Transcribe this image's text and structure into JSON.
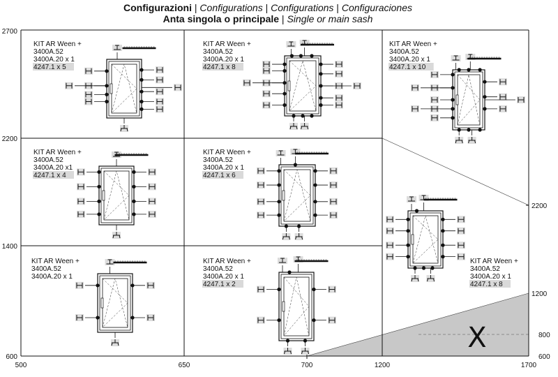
{
  "title": {
    "line1_it": "Configurazioni",
    "line1_rest": [
      " | ",
      "Configurations",
      " | ",
      "Configurations",
      " | ",
      "Configuraciones"
    ],
    "line2_it": "Anta singola o principale",
    "line2_sep": " | ",
    "line2_en": "Single or main sash"
  },
  "axes": {
    "x_ticks": [
      "500",
      "650",
      "700",
      "1200",
      "1700"
    ],
    "y_left_ticks": [
      "2700",
      "2200",
      "1400",
      "600"
    ],
    "y_right_ticks": [
      "2200",
      "1200",
      "800",
      "600"
    ]
  },
  "excluded_zone": {
    "label": "X",
    "fill": "#c8c8c8"
  },
  "colors": {
    "line": "#111111",
    "label_bg": "#d9d9d9",
    "excluded": "#c8c8c8"
  },
  "cells": [
    {
      "id": "r1c1",
      "lines": [
        "KIT AR Ween +",
        "3400A.52",
        "3400A.20 x 1"
      ],
      "qty": "4247.1 x 5"
    },
    {
      "id": "r1c2",
      "lines": [
        "KIT AR Ween +",
        "3400A.52",
        "3400A.20 x 1"
      ],
      "qty": "4247.1 x 8"
    },
    {
      "id": "r1c3",
      "lines": [
        "KIT AR Ween +",
        "3400A.52",
        "3400A.20 x 1"
      ],
      "qty": "4247.1 x 10"
    },
    {
      "id": "r2c1",
      "lines": [
        "KIT AR Ween +",
        "3400A.52",
        "3400A.20 x1"
      ],
      "qty": "4247.1 x 4"
    },
    {
      "id": "r2c2",
      "lines": [
        "KIT AR Ween +",
        "3400A.52",
        "3400A.20 x 1"
      ],
      "qty": "4247.1 x 6"
    },
    {
      "id": "r2c3",
      "lines": [
        "KIT AR Ween +",
        "3400A.52",
        "3400A.20 x 1"
      ],
      "qty": "4247.1 x 8"
    },
    {
      "id": "r3c1",
      "lines": [
        "KIT AR Ween +",
        "3400A.52",
        "3400A.20 x 1"
      ],
      "qty": ""
    },
    {
      "id": "r3c2",
      "lines": [
        "KIT AR Ween +",
        "3400A.52",
        "3400A.20 x 1"
      ],
      "qty": "4247.1 x 2"
    }
  ]
}
